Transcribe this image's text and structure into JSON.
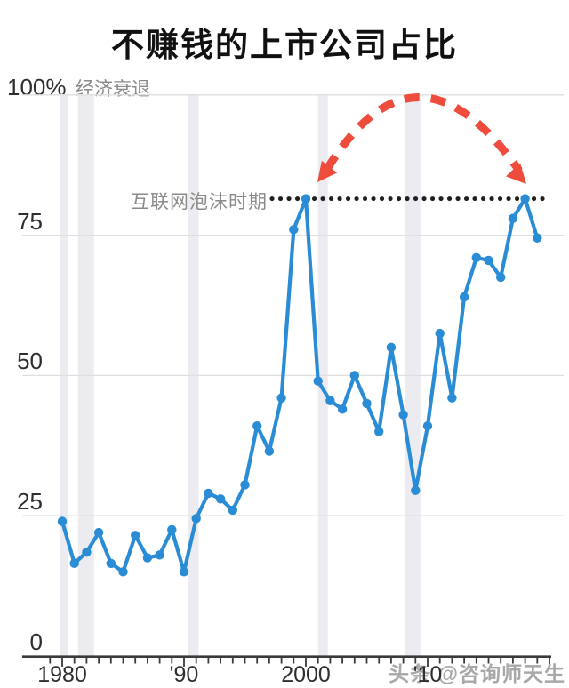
{
  "header": {
    "title": "不赚钱的上市公司占比"
  },
  "y_axis": {
    "top_label": "100%",
    "top_annotation": "经济衰退",
    "tick_labels": [
      "75",
      "50",
      "25",
      "0"
    ]
  },
  "annotations": {
    "reference_label": "互联网泡沫时期",
    "watermark": "头条 @咨询师天生"
  },
  "colors": {
    "series": "#2a8cd5",
    "arrow": "#ee4c3c",
    "recession_band": "#ebebf0",
    "gridline": "#dfdfdf",
    "axis": "#3a3a3a",
    "dotted_reference": "#1f1f1f",
    "muted_text": "#8a8a8a",
    "dark_text": "#2e2e2e"
  },
  "chart_data": {
    "type": "line",
    "title": "不赚钱的上市公司占比",
    "xlabel": "",
    "ylabel": "%",
    "ylim": [
      0,
      100
    ],
    "y_ticks": [
      0,
      25,
      50,
      75,
      100
    ],
    "grid": true,
    "x": [
      1980,
      1981,
      1982,
      1983,
      1984,
      1985,
      1986,
      1987,
      1988,
      1989,
      1990,
      1991,
      1992,
      1993,
      1994,
      1995,
      1996,
      1997,
      1998,
      1999,
      2000,
      2001,
      2002,
      2003,
      2004,
      2005,
      2006,
      2007,
      2008,
      2009,
      2010,
      2011,
      2012,
      2013,
      2014,
      2015,
      2016,
      2017,
      2018,
      2019
    ],
    "series": [
      {
        "name": "不赚钱的上市公司占比",
        "values": [
          24,
          16.5,
          18.5,
          22,
          16.5,
          15,
          21.5,
          17.5,
          18,
          22.5,
          15,
          24.5,
          29,
          28,
          26,
          30.5,
          41,
          36.5,
          46,
          76,
          81.5,
          49,
          45.5,
          44,
          50,
          45,
          40,
          55,
          43,
          29.5,
          41,
          57.5,
          46,
          64,
          71,
          70.5,
          67.5,
          78,
          81.5,
          74.5
        ]
      }
    ],
    "x_tick_labels": [
      {
        "year": 1980,
        "label": "1980"
      },
      {
        "year": 1990,
        "label": "'90"
      },
      {
        "year": 2000,
        "label": "2000"
      },
      {
        "year": 2010,
        "label": "'10"
      }
    ],
    "minor_tick_years": {
      "start": 1979,
      "end": 2020
    },
    "reference_line": {
      "value": 81.5,
      "label": "互联网泡沫时期"
    },
    "recession_bands": [
      [
        1979.8,
        1980.5
      ],
      [
        1981.3,
        1982.6
      ],
      [
        1990.3,
        1991.2
      ],
      [
        2001.0,
        2001.8
      ],
      [
        2008.1,
        2009.4
      ]
    ],
    "arrow_annotation": {
      "from_year": 2000,
      "to_year": 2018,
      "style": "dashed-arc",
      "double_headed": true
    }
  }
}
